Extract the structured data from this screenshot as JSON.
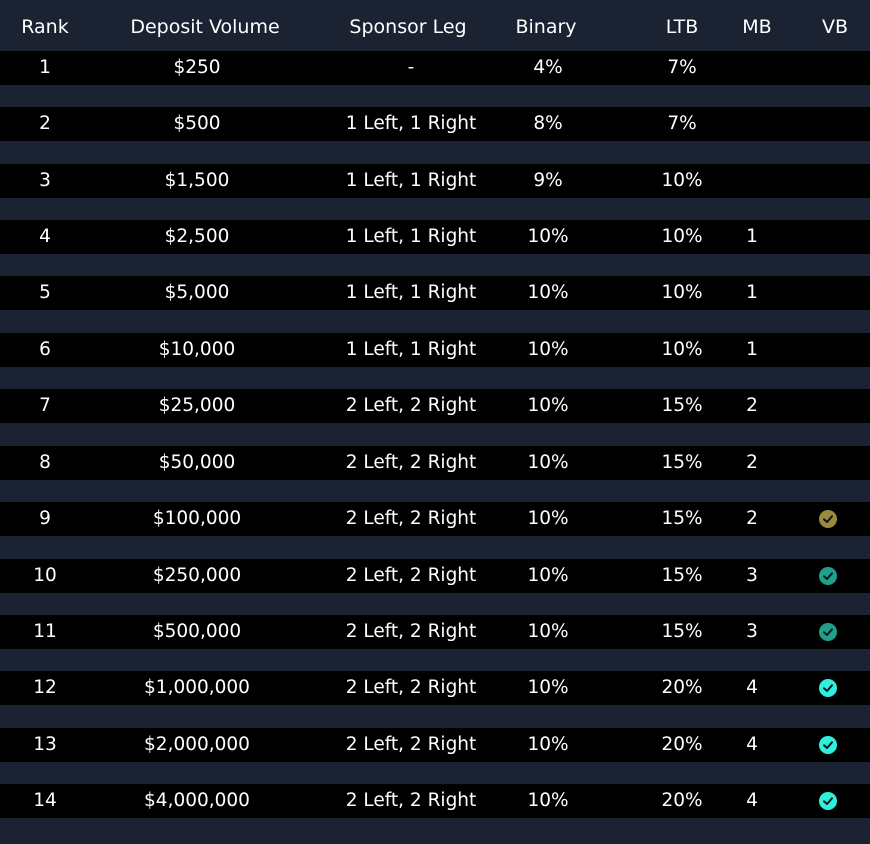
{
  "columns": {
    "rank": "Rank",
    "deposit": "Deposit Volume",
    "sponsor": "Sponsor Leg",
    "binary": "Binary",
    "ltb": "LTB",
    "mb": "MB",
    "vb": "VB"
  },
  "rows": [
    {
      "rank": "1",
      "deposit": "$250",
      "sponsor": "-",
      "binary": "4%",
      "ltb": "7%",
      "mb": "",
      "vb": ""
    },
    {
      "rank": "2",
      "deposit": "$500",
      "sponsor": "1 Left, 1 Right",
      "binary": "8%",
      "ltb": "7%",
      "mb": "",
      "vb": ""
    },
    {
      "rank": "3",
      "deposit": "$1,500",
      "sponsor": "1 Left, 1 Right",
      "binary": "9%",
      "ltb": "10%",
      "mb": "",
      "vb": ""
    },
    {
      "rank": "4",
      "deposit": "$2,500",
      "sponsor": "1 Left, 1 Right",
      "binary": "10%",
      "ltb": "10%",
      "mb": "1",
      "vb": ""
    },
    {
      "rank": "5",
      "deposit": "$5,000",
      "sponsor": "1 Left, 1 Right",
      "binary": "10%",
      "ltb": "10%",
      "mb": "1",
      "vb": ""
    },
    {
      "rank": "6",
      "deposit": "$10,000",
      "sponsor": "1 Left, 1 Right",
      "binary": "10%",
      "ltb": "10%",
      "mb": "1",
      "vb": ""
    },
    {
      "rank": "7",
      "deposit": "$25,000",
      "sponsor": "2 Left, 2 Right",
      "binary": "10%",
      "ltb": "15%",
      "mb": "2",
      "vb": ""
    },
    {
      "rank": "8",
      "deposit": "$50,000",
      "sponsor": "2 Left, 2 Right",
      "binary": "10%",
      "ltb": "15%",
      "mb": "2",
      "vb": ""
    },
    {
      "rank": "9",
      "deposit": "$100,000",
      "sponsor": "2 Left, 2 Right",
      "binary": "10%",
      "ltb": "15%",
      "mb": "2",
      "vb": "#9a8a3e"
    },
    {
      "rank": "10",
      "deposit": "$250,000",
      "sponsor": "2 Left, 2 Right",
      "binary": "10%",
      "ltb": "15%",
      "mb": "3",
      "vb": "#20a08a"
    },
    {
      "rank": "11",
      "deposit": "$500,000",
      "sponsor": "2 Left, 2 Right",
      "binary": "10%",
      "ltb": "15%",
      "mb": "3",
      "vb": "#20a08a"
    },
    {
      "rank": "12",
      "deposit": "$1,000,000",
      "sponsor": "2 Left, 2 Right",
      "binary": "10%",
      "ltb": "20%",
      "mb": "4",
      "vb": "#2ff0dc"
    },
    {
      "rank": "13",
      "deposit": "$2,000,000",
      "sponsor": "2 Left, 2 Right",
      "binary": "10%",
      "ltb": "20%",
      "mb": "4",
      "vb": "#2ff0dc"
    },
    {
      "rank": "14",
      "deposit": "$4,000,000",
      "sponsor": "2 Left, 2 Right",
      "binary": "10%",
      "ltb": "20%",
      "mb": "4",
      "vb": "#2ff0dc"
    }
  ]
}
